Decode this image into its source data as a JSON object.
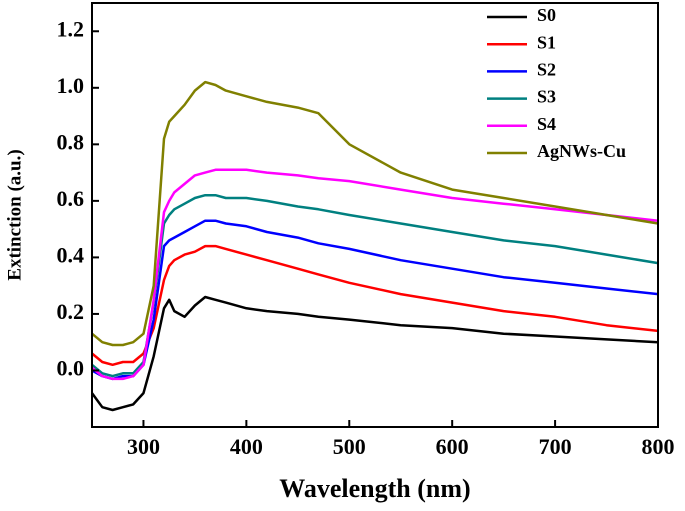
{
  "chart_data": {
    "type": "line",
    "xlabel": "Wavelength (nm)",
    "ylabel": "Extinction (a.u.)",
    "x": [
      250,
      260,
      270,
      280,
      290,
      300,
      310,
      320,
      325,
      330,
      340,
      350,
      360,
      370,
      380,
      400,
      420,
      450,
      470,
      500,
      550,
      600,
      650,
      700,
      750,
      800
    ],
    "series": [
      {
        "name": "S0",
        "color": "#000000",
        "values": [
          -0.08,
          -0.13,
          -0.14,
          -0.13,
          -0.12,
          -0.08,
          0.05,
          0.22,
          0.25,
          0.21,
          0.19,
          0.23,
          0.26,
          0.25,
          0.24,
          0.22,
          0.21,
          0.2,
          0.19,
          0.18,
          0.16,
          0.15,
          0.13,
          0.12,
          0.11,
          0.1
        ]
      },
      {
        "name": "S1",
        "color": "#ff0000",
        "values": [
          0.06,
          0.03,
          0.02,
          0.03,
          0.03,
          0.06,
          0.15,
          0.32,
          0.37,
          0.39,
          0.41,
          0.42,
          0.44,
          0.44,
          0.43,
          0.41,
          0.39,
          0.36,
          0.34,
          0.31,
          0.27,
          0.24,
          0.21,
          0.19,
          0.16,
          0.14
        ]
      },
      {
        "name": "S2",
        "color": "#0000ff",
        "values": [
          0.0,
          -0.02,
          -0.03,
          -0.02,
          -0.02,
          0.02,
          0.18,
          0.44,
          0.46,
          0.47,
          0.49,
          0.51,
          0.53,
          0.53,
          0.52,
          0.51,
          0.49,
          0.47,
          0.45,
          0.43,
          0.39,
          0.36,
          0.33,
          0.31,
          0.29,
          0.27
        ]
      },
      {
        "name": "S3",
        "color": "#008080",
        "values": [
          0.02,
          -0.01,
          -0.02,
          -0.01,
          -0.01,
          0.03,
          0.24,
          0.52,
          0.55,
          0.57,
          0.59,
          0.61,
          0.62,
          0.62,
          0.61,
          0.61,
          0.6,
          0.58,
          0.57,
          0.55,
          0.52,
          0.49,
          0.46,
          0.44,
          0.41,
          0.38
        ]
      },
      {
        "name": "S4",
        "color": "#ff00ff",
        "values": [
          0.01,
          -0.02,
          -0.03,
          -0.03,
          -0.02,
          0.02,
          0.25,
          0.56,
          0.6,
          0.63,
          0.66,
          0.69,
          0.7,
          0.71,
          0.71,
          0.71,
          0.7,
          0.69,
          0.68,
          0.67,
          0.64,
          0.61,
          0.59,
          0.57,
          0.55,
          0.53
        ]
      },
      {
        "name": "AgNWs-Cu",
        "color": "#808000",
        "values": [
          0.13,
          0.1,
          0.09,
          0.09,
          0.1,
          0.13,
          0.3,
          0.82,
          0.88,
          0.9,
          0.94,
          0.99,
          1.02,
          1.01,
          0.99,
          0.97,
          0.95,
          0.93,
          0.91,
          0.8,
          0.7,
          0.64,
          0.61,
          0.58,
          0.55,
          0.52
        ]
      }
    ],
    "xlim": [
      250,
      800
    ],
    "xticks": [
      300,
      400,
      500,
      600,
      700,
      800
    ],
    "ylim": [
      -0.2,
      1.3
    ],
    "yticks": [
      {
        "value": 0,
        "label": "0.0"
      },
      0.2,
      0.4,
      0.6,
      0.8,
      {
        "value": 1,
        "label": "1.0"
      },
      1.2
    ],
    "legend": "upper right"
  }
}
